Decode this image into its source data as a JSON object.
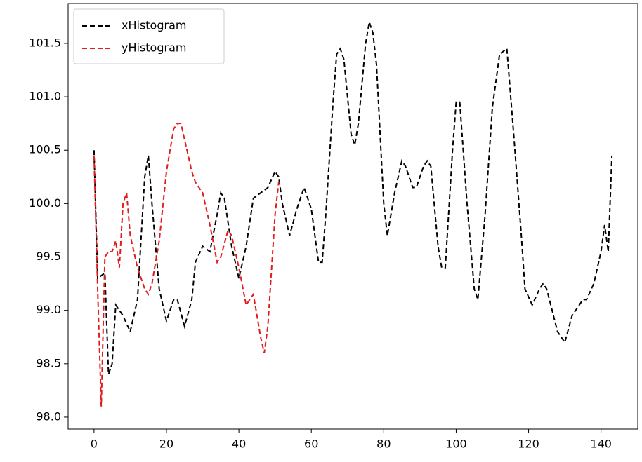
{
  "chart_data": {
    "type": "line",
    "xlim": [
      -7.15,
      150.15
    ],
    "ylim": [
      97.888,
      101.874
    ],
    "xticks": [
      0,
      20,
      40,
      60,
      80,
      100,
      120,
      140
    ],
    "yticks": [
      {
        "value": 98,
        "label": "98.0"
      },
      {
        "value": 98.5,
        "label": "98.5"
      },
      {
        "value": 99,
        "label": "99.0"
      },
      {
        "value": 99.5,
        "label": "99.5"
      },
      {
        "value": 100,
        "label": "100.0"
      },
      {
        "value": 100.5,
        "label": "100.5"
      },
      {
        "value": 101,
        "label": "101.0"
      },
      {
        "value": 101.5,
        "label": "101.5"
      }
    ],
    "legend": "upper left",
    "line_style": "dashed",
    "series": [
      {
        "name": "xHistogram",
        "color": "#000000",
        "x": [
          0,
          1,
          3,
          4,
          5,
          6,
          8,
          10,
          12,
          14,
          15,
          16,
          18,
          20,
          22,
          23,
          25,
          27,
          28,
          30,
          32,
          34,
          35,
          36,
          38,
          40,
          42,
          44,
          46,
          48,
          50,
          51,
          52,
          54,
          56,
          58,
          60,
          62,
          63,
          64,
          66,
          67,
          68,
          69,
          71,
          72,
          73,
          75,
          76,
          77,
          78,
          80,
          81,
          83,
          85,
          86,
          88,
          89,
          91,
          92,
          93,
          95,
          96,
          97,
          99,
          100,
          101,
          103,
          105,
          106,
          108,
          110,
          112,
          114,
          116,
          118,
          119,
          121,
          123,
          124,
          125,
          128,
          130,
          132,
          134,
          135,
          136,
          138,
          140,
          141,
          142,
          143
        ],
        "values": [
          100.5,
          99.3,
          99.35,
          98.4,
          98.5,
          99.05,
          98.95,
          98.8,
          99.1,
          100.25,
          100.45,
          100.0,
          99.2,
          98.9,
          99.1,
          99.1,
          98.85,
          99.1,
          99.45,
          99.6,
          99.55,
          99.9,
          100.1,
          100.05,
          99.6,
          99.3,
          99.6,
          100.05,
          100.1,
          100.15,
          100.3,
          100.25,
          100.0,
          99.7,
          99.95,
          100.15,
          99.95,
          99.45,
          99.45,
          99.9,
          100.95,
          101.4,
          101.45,
          101.35,
          100.65,
          100.55,
          100.75,
          101.5,
          101.7,
          101.6,
          101.3,
          100.0,
          99.7,
          100.1,
          100.4,
          100.35,
          100.15,
          100.15,
          100.35,
          100.4,
          100.35,
          99.6,
          99.4,
          99.4,
          100.5,
          100.95,
          100.95,
          100.0,
          99.2,
          99.1,
          99.9,
          100.9,
          101.4,
          101.45,
          100.6,
          99.7,
          99.2,
          99.05,
          99.2,
          99.25,
          99.2,
          98.8,
          98.7,
          98.95,
          99.05,
          99.1,
          99.1,
          99.25,
          99.55,
          99.8,
          99.55,
          100.45
        ]
      },
      {
        "name": "yHistogram",
        "color": "#e41a1c",
        "x": [
          0,
          1,
          2,
          3,
          4,
          5,
          6,
          7,
          8,
          9,
          10,
          12,
          13,
          14,
          15,
          16,
          18,
          20,
          22,
          23,
          24,
          25,
          27,
          28,
          30,
          31,
          32,
          34,
          35,
          37,
          38,
          40,
          42,
          44,
          46,
          47,
          48,
          50,
          51
        ],
        "values": [
          100.45,
          99.2,
          98.1,
          99.5,
          99.55,
          99.55,
          99.65,
          99.4,
          100.0,
          100.1,
          99.7,
          99.4,
          99.3,
          99.2,
          99.15,
          99.25,
          99.65,
          100.3,
          100.7,
          100.75,
          100.75,
          100.6,
          100.3,
          100.2,
          100.1,
          99.95,
          99.8,
          99.45,
          99.5,
          99.75,
          99.7,
          99.4,
          99.05,
          99.15,
          98.75,
          98.6,
          98.85,
          99.9,
          100.2
        ]
      }
    ]
  }
}
